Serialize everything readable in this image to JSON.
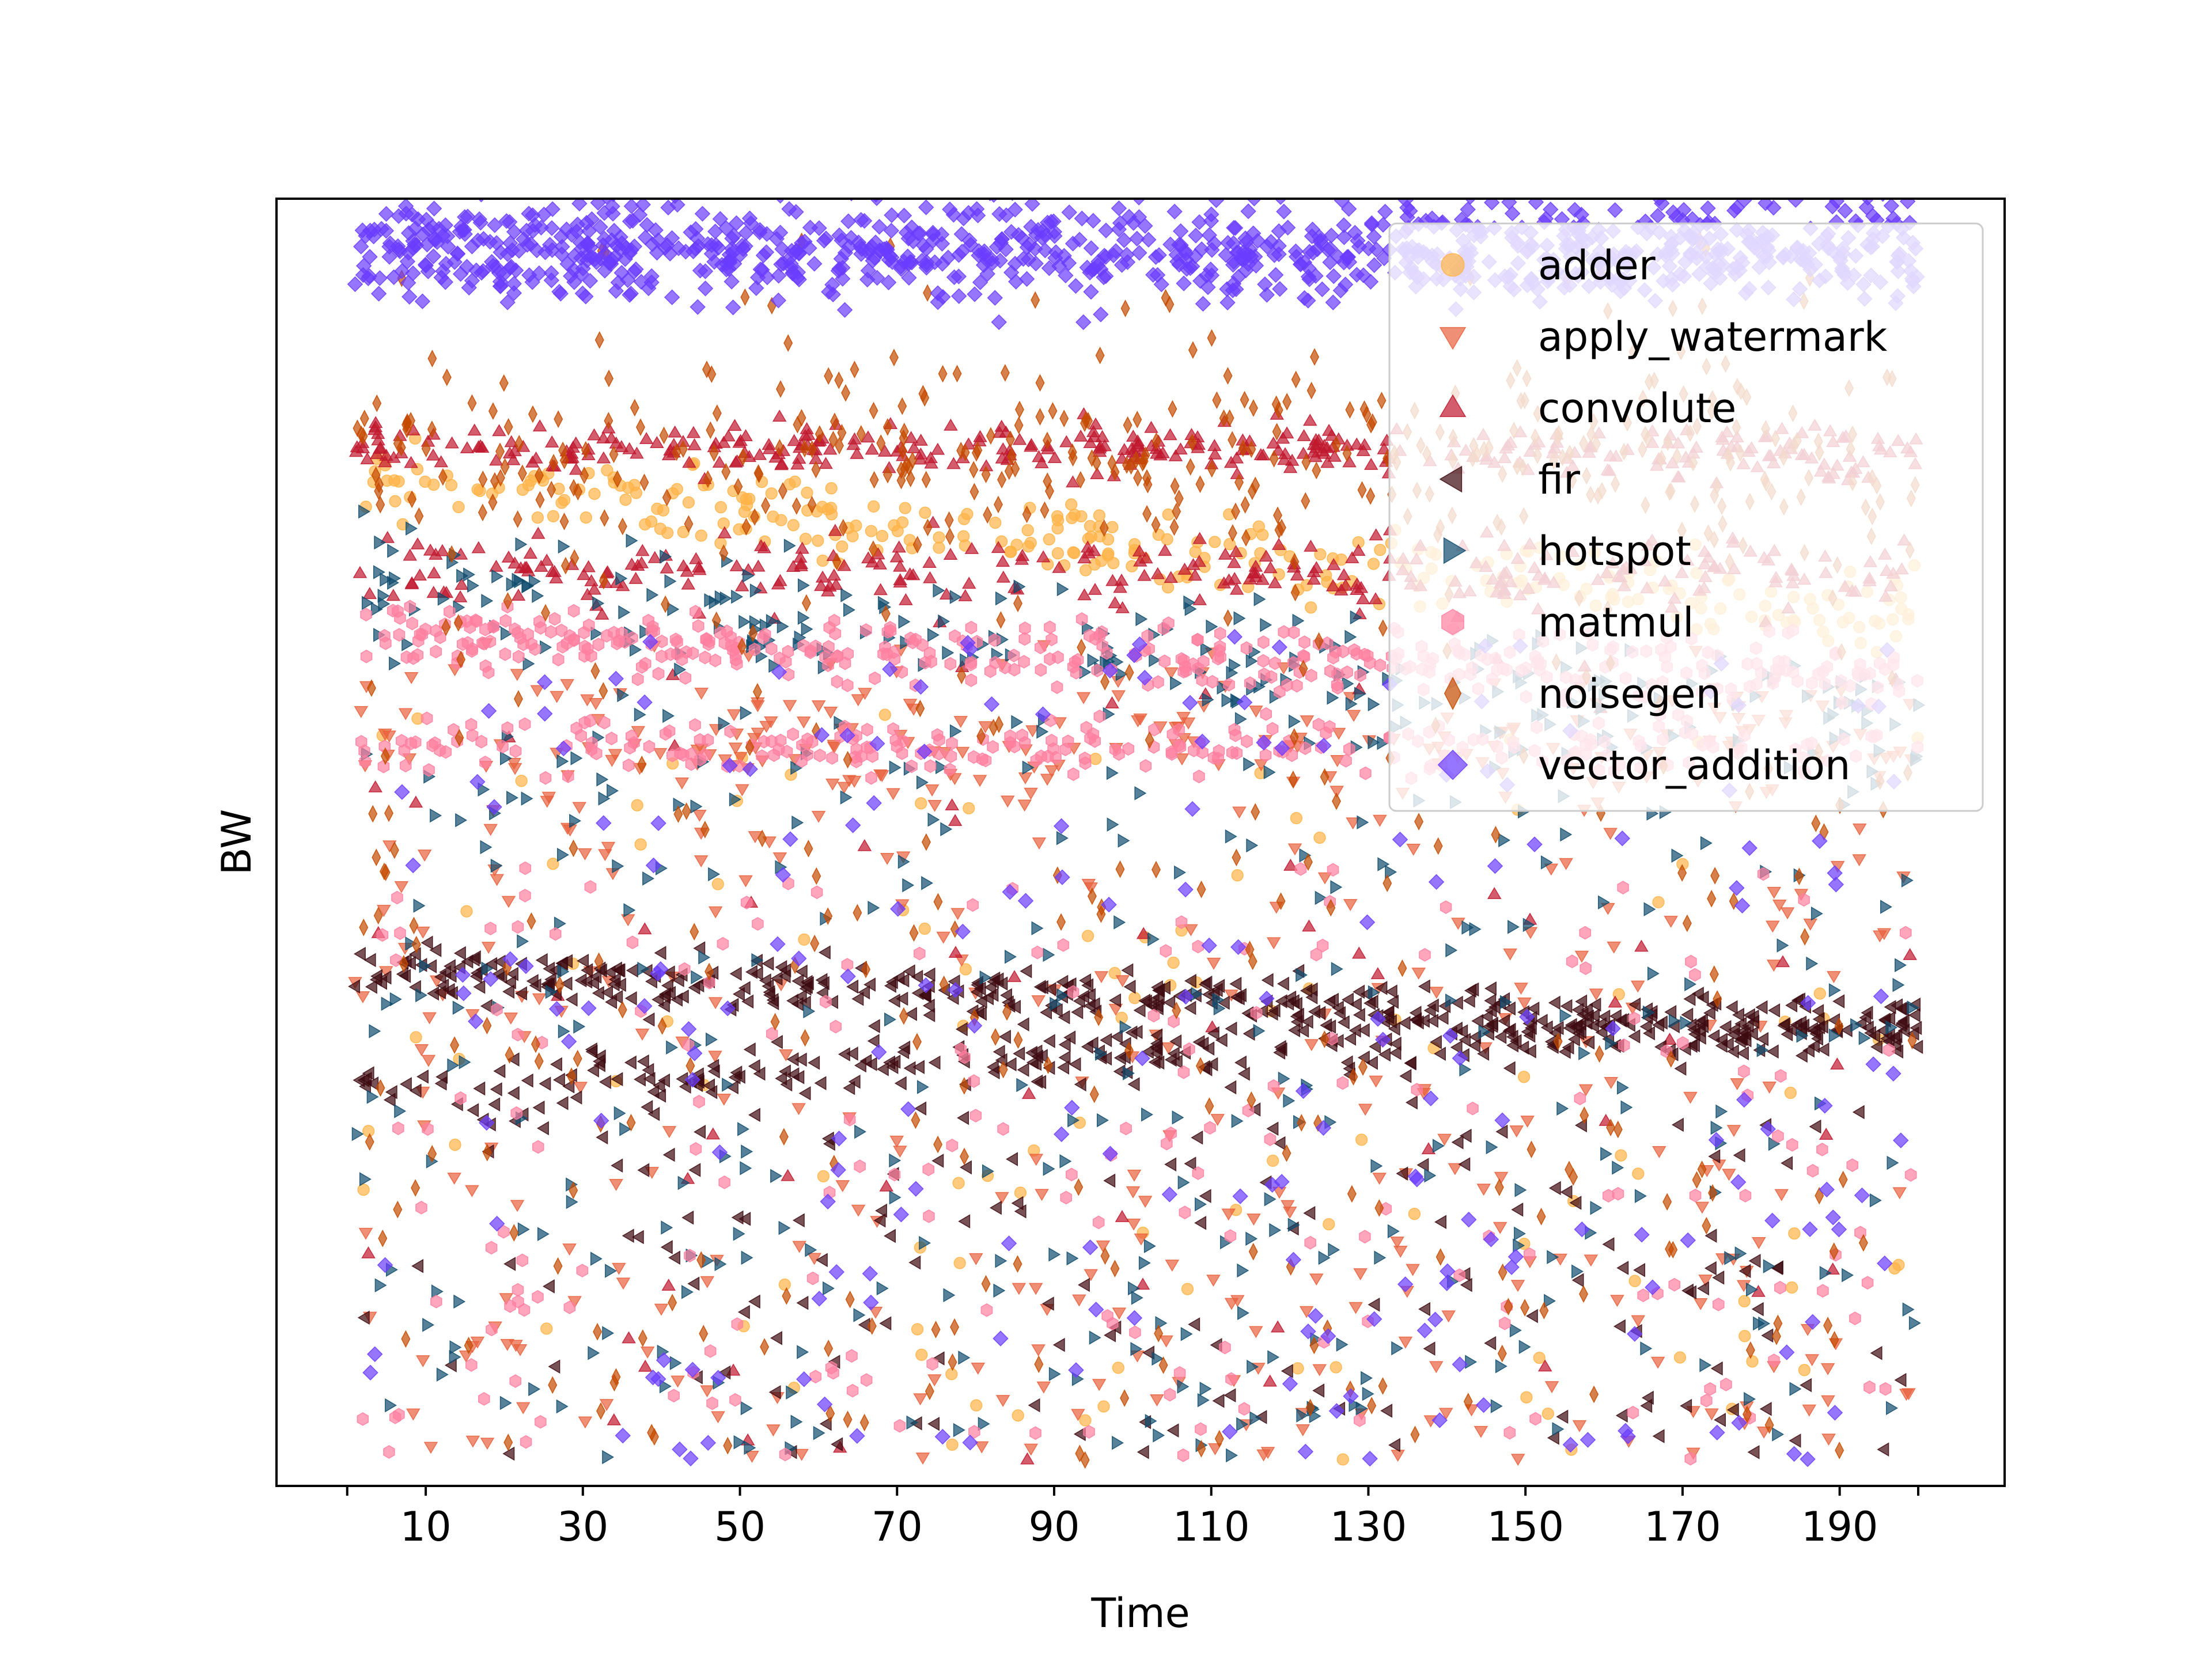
{
  "chart_data": {
    "type": "scatter",
    "title": "",
    "xlabel": "Time",
    "ylabel": "BW",
    "xlim": [
      -9,
      211
    ],
    "ylim": [
      0,
      100
    ],
    "xticks": [
      10,
      30,
      50,
      70,
      90,
      110,
      130,
      150,
      170,
      190
    ],
    "xtick_labels": [
      "10",
      "30",
      "50",
      "70",
      "90",
      "110",
      "130",
      "150",
      "170",
      "190"
    ],
    "yticks_visible": false,
    "grid": false,
    "legend_position": "top-right",
    "marker_alpha": 0.7,
    "point_x_range": [
      1,
      200
    ],
    "series": [
      {
        "name": "adder",
        "marker": "circle",
        "color": "#ffb347",
        "bands": [
          {
            "y_start": 78,
            "y_end": 68,
            "spread": 3,
            "count": 300
          }
        ],
        "scatter": {
          "y_min": 2,
          "y_max": 60,
          "count": 110
        }
      },
      {
        "name": "apply_watermark",
        "marker": "triangle-down",
        "color": "#e8603c",
        "bands": [
          {
            "y_start": 58,
            "y_end": 58,
            "spread": 4,
            "count": 150
          }
        ],
        "scatter": {
          "y_min": 2,
          "y_max": 66,
          "count": 380
        }
      },
      {
        "name": "convolute",
        "marker": "triangle-up",
        "color": "#c0182e",
        "bands": [
          {
            "y_start": 81,
            "y_end": 80,
            "spread": 1.8,
            "count": 360
          },
          {
            "y_start": 71,
            "y_end": 71,
            "spread": 2.5,
            "count": 280
          }
        ],
        "scatter": {
          "y_min": 2,
          "y_max": 66,
          "count": 60
        }
      },
      {
        "name": "fir",
        "marker": "triangle-left",
        "color": "#3d0a10",
        "bands": [
          {
            "y_start": 40,
            "y_end": 35.5,
            "spread": 1.8,
            "count": 420
          },
          {
            "y_start": 31,
            "y_end": 36,
            "spread": 2,
            "count": 280
          }
        ],
        "scatter": {
          "y_min": 2,
          "y_max": 30,
          "count": 160
        }
      },
      {
        "name": "hotspot",
        "marker": "triangle-right",
        "color": "#0f4c6e",
        "bands": [
          {
            "y_start": 70,
            "y_end": 59,
            "spread": 4.5,
            "count": 240
          }
        ],
        "scatter": {
          "y_min": 2,
          "y_max": 60,
          "count": 360
        }
      },
      {
        "name": "matmul",
        "marker": "hexagon",
        "color": "#ff7fa0",
        "bands": [
          {
            "y_start": 66,
            "y_end": 63,
            "spread": 2.2,
            "count": 380
          },
          {
            "y_start": 57.5,
            "y_end": 57.5,
            "spread": 2,
            "count": 240
          }
        ],
        "scatter": {
          "y_min": 2,
          "y_max": 48,
          "count": 200
        }
      },
      {
        "name": "noisegen",
        "marker": "thin-diamond",
        "color": "#c44a00",
        "bands": [
          {
            "y_start": 80,
            "y_end": 80,
            "spread": 6,
            "count": 300
          }
        ],
        "scatter": {
          "y_min": 2,
          "y_max": 97,
          "count": 360
        }
      },
      {
        "name": "vector_addition",
        "marker": "diamond",
        "color": "#6a3cff",
        "bands": [
          {
            "y_start": 96,
            "y_end": 96,
            "spread": 3.5,
            "count": 1000
          }
        ],
        "scatter": {
          "y_min": 2,
          "y_max": 66,
          "count": 220
        }
      }
    ]
  }
}
